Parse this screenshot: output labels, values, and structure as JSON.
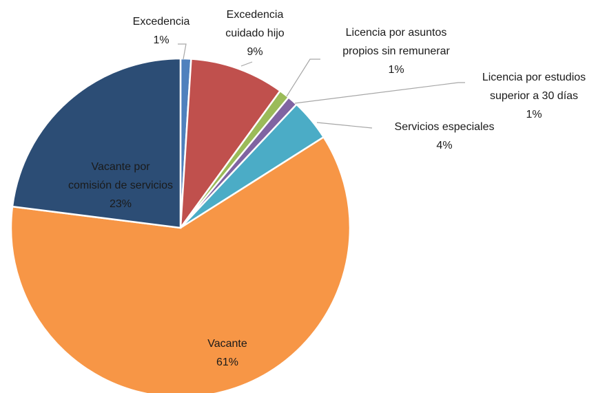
{
  "chart_data": {
    "type": "pie",
    "categories": [
      "Excedencia",
      "Excedencia\ncuidado hijo",
      "Licencia por asuntos\npropios sin remunerar",
      "Licencia por estudios\nsuperior a 30 días",
      "Servicios especiales",
      "Vacante",
      "Vacante por\ncomisión de servicios"
    ],
    "values": [
      1,
      9,
      1,
      1,
      4,
      61,
      23
    ],
    "value_labels": [
      "1%",
      "9%",
      "1%",
      "1%",
      "4%",
      "61%",
      "23%"
    ],
    "colors": [
      "#4f81bd",
      "#c0504d",
      "#9bbb59",
      "#8064a2",
      "#4bacc6",
      "#f79646",
      "#2c4d75"
    ]
  }
}
